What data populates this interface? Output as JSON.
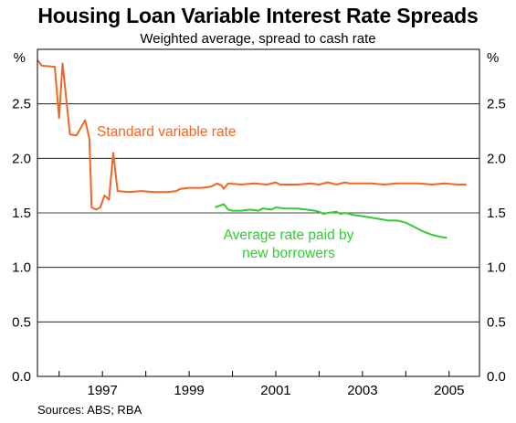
{
  "chart_data": {
    "type": "line",
    "title": "Housing Loan Variable Interest Rate Spreads",
    "subtitle": "Weighted average, spread to cash rate",
    "ylabel_left": "%",
    "ylabel_right": "%",
    "ylim": [
      0,
      3.0
    ],
    "yticks": [
      "0.0",
      "0.5",
      "1.0",
      "1.5",
      "2.0",
      "2.5"
    ],
    "xlim": [
      1995.5,
      2005.7
    ],
    "xticks": [
      {
        "label": "1997",
        "x": 1997.0
      },
      {
        "label": "1999",
        "x": 1999.0
      },
      {
        "label": "2001",
        "x": 2001.0
      },
      {
        "label": "2003",
        "x": 2003.0
      },
      {
        "label": "2005",
        "x": 2005.0
      }
    ],
    "grid": true,
    "series": [
      {
        "name": "Standard variable rate",
        "color": "#f26522",
        "points": [
          [
            1995.5,
            2.9
          ],
          [
            1995.6,
            2.85
          ],
          [
            1995.9,
            2.84
          ],
          [
            1996.0,
            2.37
          ],
          [
            1996.08,
            2.87
          ],
          [
            1996.25,
            2.22
          ],
          [
            1996.4,
            2.21
          ],
          [
            1996.6,
            2.35
          ],
          [
            1996.7,
            2.18
          ],
          [
            1996.75,
            1.55
          ],
          [
            1996.85,
            1.53
          ],
          [
            1996.95,
            1.55
          ],
          [
            1997.05,
            1.66
          ],
          [
            1997.15,
            1.62
          ],
          [
            1997.25,
            2.05
          ],
          [
            1997.35,
            1.7
          ],
          [
            1997.6,
            1.69
          ],
          [
            1997.9,
            1.7
          ],
          [
            1998.2,
            1.69
          ],
          [
            1998.5,
            1.69
          ],
          [
            1998.7,
            1.7
          ],
          [
            1998.8,
            1.72
          ],
          [
            1999.0,
            1.73
          ],
          [
            1999.3,
            1.73
          ],
          [
            1999.5,
            1.74
          ],
          [
            1999.65,
            1.77
          ],
          [
            1999.75,
            1.75
          ],
          [
            1999.8,
            1.72
          ],
          [
            1999.9,
            1.77
          ],
          [
            2000.2,
            1.76
          ],
          [
            2000.5,
            1.77
          ],
          [
            2000.8,
            1.76
          ],
          [
            2001.0,
            1.78
          ],
          [
            2001.1,
            1.76
          ],
          [
            2001.5,
            1.76
          ],
          [
            2001.8,
            1.77
          ],
          [
            2002.0,
            1.76
          ],
          [
            2002.2,
            1.78
          ],
          [
            2002.4,
            1.76
          ],
          [
            2002.6,
            1.78
          ],
          [
            2002.7,
            1.77
          ],
          [
            2002.9,
            1.77
          ],
          [
            2003.2,
            1.77
          ],
          [
            2003.5,
            1.76
          ],
          [
            2003.8,
            1.77
          ],
          [
            2004.0,
            1.77
          ],
          [
            2004.3,
            1.77
          ],
          [
            2004.6,
            1.76
          ],
          [
            2004.9,
            1.77
          ],
          [
            2005.2,
            1.76
          ],
          [
            2005.4,
            1.76
          ]
        ]
      },
      {
        "name": "Average rate paid by new borrowers",
        "color": "#33cc33",
        "points": [
          [
            1999.6,
            1.55
          ],
          [
            1999.8,
            1.58
          ],
          [
            1999.9,
            1.53
          ],
          [
            2000.0,
            1.52
          ],
          [
            2000.2,
            1.52
          ],
          [
            2000.4,
            1.53
          ],
          [
            2000.6,
            1.52
          ],
          [
            2000.7,
            1.54
          ],
          [
            2000.9,
            1.53
          ],
          [
            2001.0,
            1.55
          ],
          [
            2001.2,
            1.54
          ],
          [
            2001.5,
            1.54
          ],
          [
            2001.7,
            1.53
          ],
          [
            2001.9,
            1.52
          ],
          [
            2002.0,
            1.51
          ],
          [
            2002.1,
            1.49
          ],
          [
            2002.2,
            1.5
          ],
          [
            2002.4,
            1.51
          ],
          [
            2002.5,
            1.49
          ],
          [
            2002.6,
            1.5
          ],
          [
            2002.8,
            1.48
          ],
          [
            2003.0,
            1.47
          ],
          [
            2003.3,
            1.45
          ],
          [
            2003.6,
            1.43
          ],
          [
            2003.8,
            1.43
          ],
          [
            2004.0,
            1.41
          ],
          [
            2004.2,
            1.37
          ],
          [
            2004.4,
            1.33
          ],
          [
            2004.6,
            1.3
          ],
          [
            2004.8,
            1.28
          ],
          [
            2004.95,
            1.27
          ]
        ]
      }
    ],
    "annotations": [
      {
        "line1": "Standard variable rate",
        "color": "#f26522"
      },
      {
        "line1": "Average rate paid by",
        "line2": "new borrowers",
        "color": "#33cc33"
      }
    ],
    "source": "Sources: ABS; RBA"
  }
}
